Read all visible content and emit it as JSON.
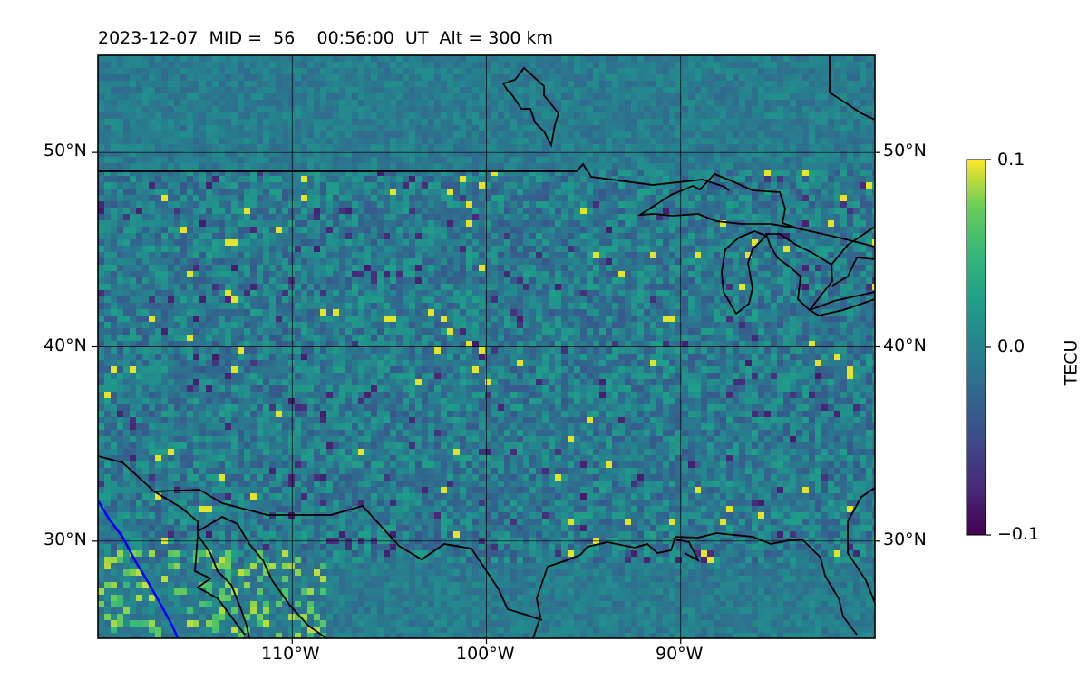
{
  "title": "2023-12-07  MID =  56    00:56:00  UT  Alt = 300 km",
  "map": {
    "lat_range": [
      25,
      55
    ],
    "lon_range": [
      -120,
      -80
    ],
    "lat_ticks": [
      {
        "value": 50,
        "label": "50°N"
      },
      {
        "value": 40,
        "label": "40°N"
      },
      {
        "value": 30,
        "label": "30°N"
      }
    ],
    "lon_ticks": [
      {
        "value": -110,
        "label": "110°W"
      },
      {
        "value": -100,
        "label": "100°W"
      },
      {
        "value": -90,
        "label": "90°W"
      }
    ],
    "grid": true,
    "field": "TEC perturbation",
    "colormap": "viridis",
    "background_color": "#287d8e",
    "coastline_color": "#000000",
    "boundary_line_color": "#0000ff"
  },
  "colorbar": {
    "label": "TECU",
    "min": -0.1,
    "max": 0.1,
    "ticks": [
      {
        "value": 0.1,
        "label": "0.1"
      },
      {
        "value": 0.0,
        "label": "0.0"
      },
      {
        "value": -0.1,
        "label": "−0.1"
      }
    ]
  }
}
